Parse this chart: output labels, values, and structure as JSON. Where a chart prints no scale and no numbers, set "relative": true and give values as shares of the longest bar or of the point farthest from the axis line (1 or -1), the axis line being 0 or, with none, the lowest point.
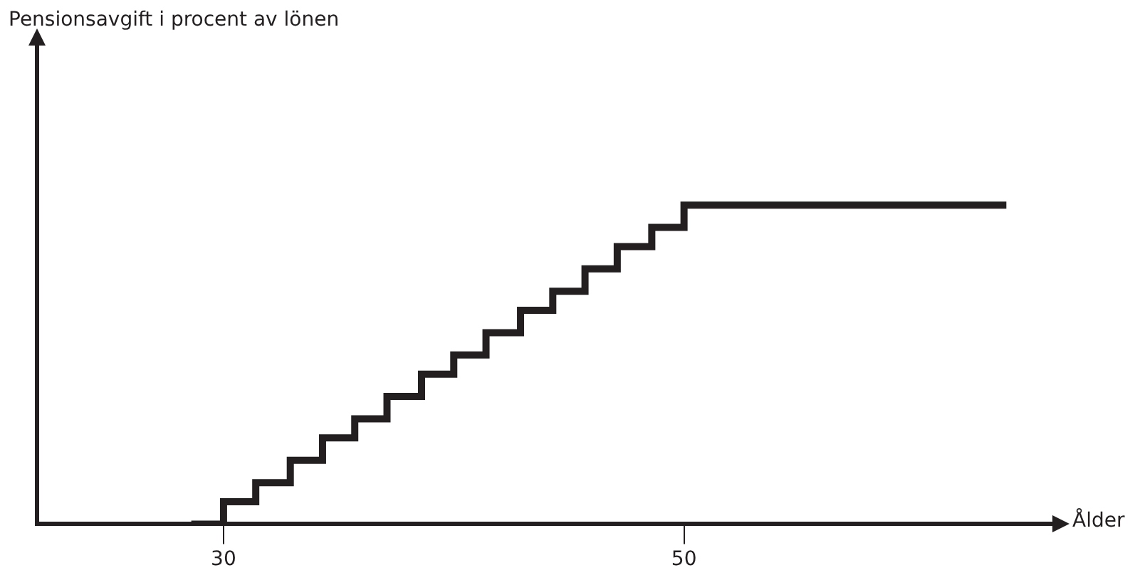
{
  "chart_data": {
    "type": "step",
    "xlabel": "Ålder",
    "annotations": [
      "Pensionsavgift i procent av lönen"
    ],
    "relative": true,
    "xlim": [
      21.9,
      66
    ],
    "xticks": [
      30,
      50
    ],
    "grid": false,
    "legend": false,
    "marker": "none",
    "line_style": "solid",
    "series": [
      {
        "color": "#231f20",
        "x": [
          28.6,
          30,
          31.4,
          32.9,
          34.3,
          35.7,
          37.1,
          38.6,
          40,
          41.4,
          42.9,
          44.3,
          45.7,
          47.1,
          48.6,
          50,
          64
        ],
        "values": [
          0,
          0.07,
          0.13,
          0.2,
          0.27,
          0.33,
          0.4,
          0.47,
          0.53,
          0.6,
          0.67,
          0.73,
          0.8,
          0.87,
          0.93,
          1,
          1
        ]
      }
    ]
  }
}
